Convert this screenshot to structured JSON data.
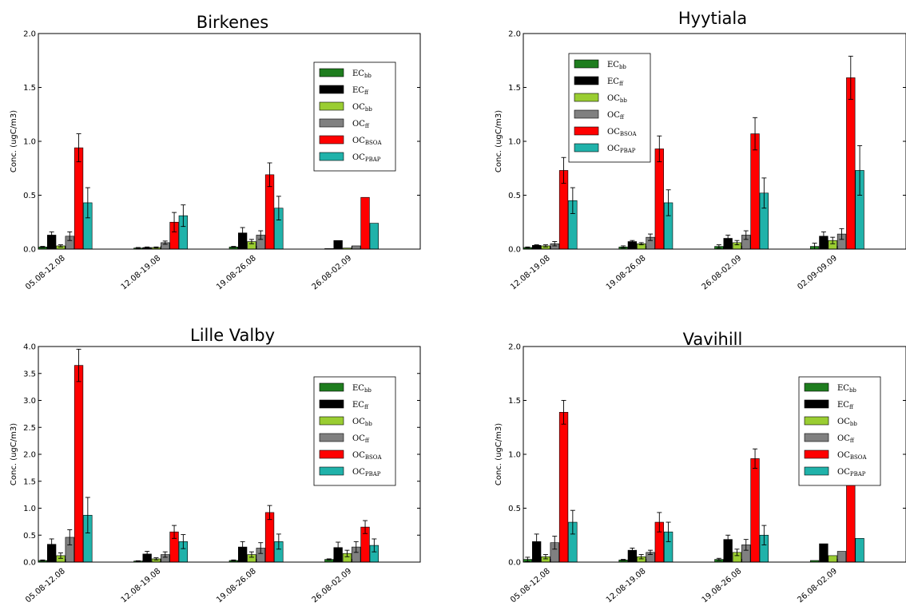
{
  "chart_data": [
    {
      "type": "bar",
      "title": "Birkenes",
      "ylabel": "Conc. (ugC/m3)",
      "ylim": [
        0,
        2.0
      ],
      "yticks": [
        "0.0",
        "0.5",
        "1.0",
        "1.5",
        "2.0"
      ],
      "categories": [
        "05.08-12.08",
        "12.08-19.08",
        "19.08-26.08",
        "26.08-02.09"
      ],
      "legend_position": "upper-right",
      "series": [
        {
          "name": "EC_bb",
          "main": "EC",
          "sub": "bb",
          "color": "#1e7d1e",
          "values": [
            0.02,
            0.01,
            0.02,
            0.005
          ],
          "errors": [
            0.005,
            0.005,
            0.005,
            0.0
          ]
        },
        {
          "name": "EC_ff",
          "main": "EC",
          "sub": "ff",
          "color": "#000000",
          "values": [
            0.13,
            0.015,
            0.15,
            0.08
          ],
          "errors": [
            0.03,
            0.005,
            0.05,
            0.0
          ]
        },
        {
          "name": "OC_bb",
          "main": "OC",
          "sub": "bb",
          "color": "#9acd32",
          "values": [
            0.03,
            0.015,
            0.07,
            0.01
          ],
          "errors": [
            0.01,
            0.005,
            0.02,
            0.0
          ]
        },
        {
          "name": "OC_ff",
          "main": "OC",
          "sub": "ff",
          "color": "#808080",
          "values": [
            0.12,
            0.06,
            0.13,
            0.03
          ],
          "errors": [
            0.04,
            0.015,
            0.04,
            0.0
          ]
        },
        {
          "name": "OC_BSOA",
          "main": "OC",
          "sub": "BSOA",
          "color": "#ff0000",
          "values": [
            0.94,
            0.25,
            0.69,
            0.48
          ],
          "errors": [
            0.13,
            0.09,
            0.11,
            0.0
          ]
        },
        {
          "name": "OC_PBAP",
          "main": "OC",
          "sub": "PBAP",
          "color": "#20b2aa",
          "values": [
            0.43,
            0.31,
            0.38,
            0.24
          ],
          "errors": [
            0.14,
            0.1,
            0.11,
            0.0
          ]
        }
      ]
    },
    {
      "type": "bar",
      "title": "Hyytiala",
      "ylabel": "Conc. (ugC/m3)",
      "ylim": [
        0,
        2.0
      ],
      "yticks": [
        "0.0",
        "0.5",
        "1.0",
        "1.5",
        "2.0"
      ],
      "categories": [
        "12.08-19.08",
        "19.08-26.08",
        "26.08-02.09",
        "02.09-09.09"
      ],
      "legend_position": "upper-left",
      "series": [
        {
          "name": "EC_bb",
          "main": "EC",
          "sub": "bb",
          "color": "#1e7d1e",
          "values": [
            0.015,
            0.02,
            0.025,
            0.025
          ],
          "errors": [
            0.005,
            0.01,
            0.015,
            0.03
          ]
        },
        {
          "name": "EC_ff",
          "main": "EC",
          "sub": "ff",
          "color": "#000000",
          "values": [
            0.035,
            0.07,
            0.1,
            0.12
          ],
          "errors": [
            0.005,
            0.01,
            0.03,
            0.04
          ]
        },
        {
          "name": "OC_bb",
          "main": "OC",
          "sub": "bb",
          "color": "#9acd32",
          "values": [
            0.03,
            0.05,
            0.06,
            0.08
          ],
          "errors": [
            0.01,
            0.01,
            0.02,
            0.03
          ]
        },
        {
          "name": "OC_ff",
          "main": "OC",
          "sub": "ff",
          "color": "#808080",
          "values": [
            0.05,
            0.11,
            0.13,
            0.14
          ],
          "errors": [
            0.02,
            0.03,
            0.04,
            0.05
          ]
        },
        {
          "name": "OC_BSOA",
          "main": "OC",
          "sub": "BSOA",
          "color": "#ff0000",
          "values": [
            0.73,
            0.93,
            1.07,
            1.59
          ],
          "errors": [
            0.12,
            0.12,
            0.15,
            0.2
          ]
        },
        {
          "name": "OC_PBAP",
          "main": "OC",
          "sub": "PBAP",
          "color": "#20b2aa",
          "values": [
            0.45,
            0.43,
            0.52,
            0.73
          ],
          "errors": [
            0.12,
            0.12,
            0.14,
            0.23
          ]
        }
      ]
    },
    {
      "type": "bar",
      "title": "Lille Valby",
      "ylabel": "Conc. (ugC/m3)",
      "ylim": [
        0,
        4.0
      ],
      "yticks": [
        "0.0",
        "0.5",
        "1.0",
        "1.5",
        "2.0",
        "2.5",
        "3.0",
        "3.5",
        "4.0"
      ],
      "categories": [
        "05.08-12.08",
        "12.08-19.08",
        "19.08-26.08",
        "26.08-02.09"
      ],
      "legend_position": "upper-right",
      "series": [
        {
          "name": "EC_bb",
          "main": "EC",
          "sub": "bb",
          "color": "#1e7d1e",
          "values": [
            0.03,
            0.02,
            0.03,
            0.05
          ],
          "errors": [
            0.01,
            0.005,
            0.01,
            0.01
          ]
        },
        {
          "name": "EC_ff",
          "main": "EC",
          "sub": "ff",
          "color": "#000000",
          "values": [
            0.33,
            0.15,
            0.28,
            0.27
          ],
          "errors": [
            0.1,
            0.05,
            0.1,
            0.1
          ]
        },
        {
          "name": "OC_bb",
          "main": "OC",
          "sub": "bb",
          "color": "#9acd32",
          "values": [
            0.12,
            0.06,
            0.14,
            0.16
          ],
          "errors": [
            0.05,
            0.02,
            0.05,
            0.06
          ]
        },
        {
          "name": "OC_ff",
          "main": "OC",
          "sub": "ff",
          "color": "#808080",
          "values": [
            0.46,
            0.14,
            0.26,
            0.28
          ],
          "errors": [
            0.14,
            0.05,
            0.1,
            0.1
          ]
        },
        {
          "name": "OC_BSOA",
          "main": "OC",
          "sub": "BSOA",
          "color": "#ff0000",
          "values": [
            3.65,
            0.56,
            0.92,
            0.65
          ],
          "errors": [
            0.3,
            0.12,
            0.13,
            0.12
          ]
        },
        {
          "name": "OC_PBAP",
          "main": "OC",
          "sub": "PBAP",
          "color": "#20b2aa",
          "values": [
            0.87,
            0.38,
            0.38,
            0.31
          ],
          "errors": [
            0.33,
            0.13,
            0.14,
            0.12
          ]
        }
      ]
    },
    {
      "type": "bar",
      "title": "Vavihill",
      "ylabel": "Conc. (ugC/m3)",
      "ylim": [
        0,
        2.0
      ],
      "yticks": [
        "0.0",
        "0.5",
        "1.0",
        "1.5",
        "2.0"
      ],
      "categories": [
        "05.08-12.08",
        "12.08-19.08",
        "19.08-26.08",
        "26.08-02.09"
      ],
      "legend_position": "upper-right",
      "series": [
        {
          "name": "EC_bb",
          "main": "EC",
          "sub": "bb",
          "color": "#1e7d1e",
          "values": [
            0.025,
            0.02,
            0.025,
            0.015
          ],
          "errors": [
            0.02,
            0.005,
            0.01,
            0.0
          ]
        },
        {
          "name": "EC_ff",
          "main": "EC",
          "sub": "ff",
          "color": "#000000",
          "values": [
            0.19,
            0.11,
            0.21,
            0.17
          ],
          "errors": [
            0.07,
            0.02,
            0.04,
            0.0
          ]
        },
        {
          "name": "OC_bb",
          "main": "OC",
          "sub": "bb",
          "color": "#9acd32",
          "values": [
            0.05,
            0.05,
            0.09,
            0.06
          ],
          "errors": [
            0.02,
            0.02,
            0.03,
            0.0
          ]
        },
        {
          "name": "OC_ff",
          "main": "OC",
          "sub": "ff",
          "color": "#808080",
          "values": [
            0.18,
            0.09,
            0.16,
            0.1
          ],
          "errors": [
            0.06,
            0.02,
            0.05,
            0.0
          ]
        },
        {
          "name": "OC_BSOA",
          "main": "OC",
          "sub": "BSOA",
          "color": "#ff0000",
          "values": [
            1.39,
            0.37,
            0.96,
            0.76
          ],
          "errors": [
            0.11,
            0.09,
            0.09,
            0.0
          ]
        },
        {
          "name": "OC_PBAP",
          "main": "OC",
          "sub": "PBAP",
          "color": "#20b2aa",
          "values": [
            0.37,
            0.28,
            0.25,
            0.22
          ],
          "errors": [
            0.11,
            0.09,
            0.09,
            0.0
          ]
        }
      ]
    }
  ]
}
